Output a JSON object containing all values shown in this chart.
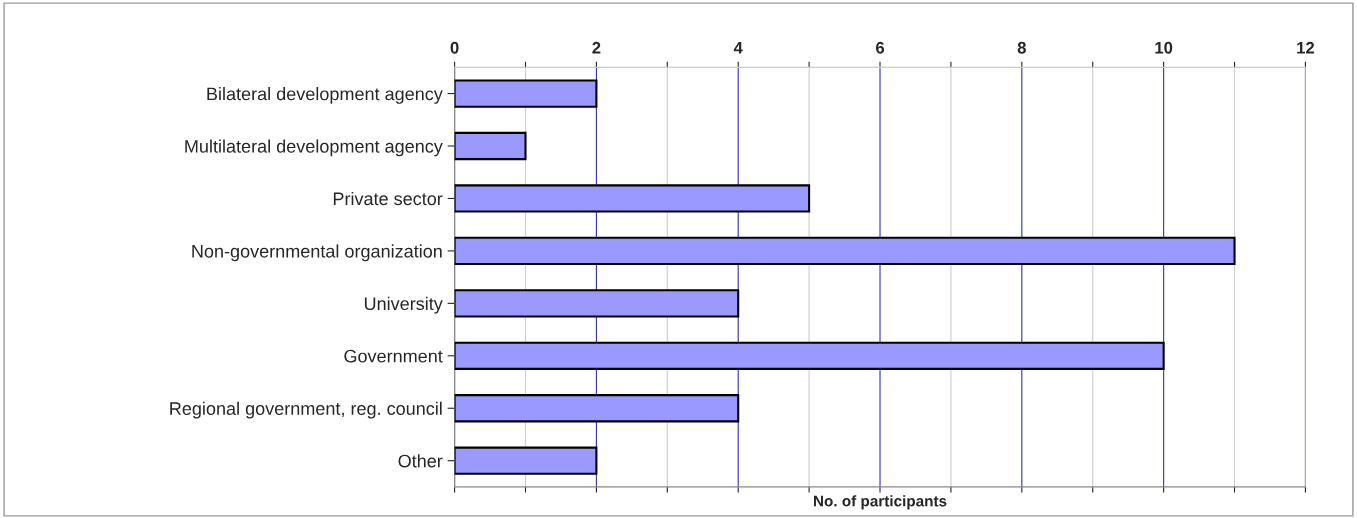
{
  "chart_data": {
    "type": "bar",
    "orientation": "horizontal",
    "xlabel": "No. of participants",
    "categories": [
      "Bilateral development agency",
      "Multilateral development agency",
      "Private sector",
      "Non-governmental organization",
      "University",
      "Government",
      "Regional government, reg. council",
      "Other"
    ],
    "values": [
      2,
      1,
      5,
      11,
      4,
      10,
      4,
      2
    ],
    "color": "#9999ff",
    "xlim": [
      0,
      12
    ],
    "xticks": [
      0,
      {
        "value": 1,
        "label": null
      },
      2,
      {
        "value": 3,
        "label": null
      },
      4,
      {
        "value": 5,
        "label": null
      },
      6,
      {
        "value": 7,
        "label": null
      },
      8,
      {
        "value": 9,
        "label": null
      },
      10,
      {
        "value": 11,
        "label": null
      },
      12
    ],
    "grid": "x",
    "legend": false
  }
}
